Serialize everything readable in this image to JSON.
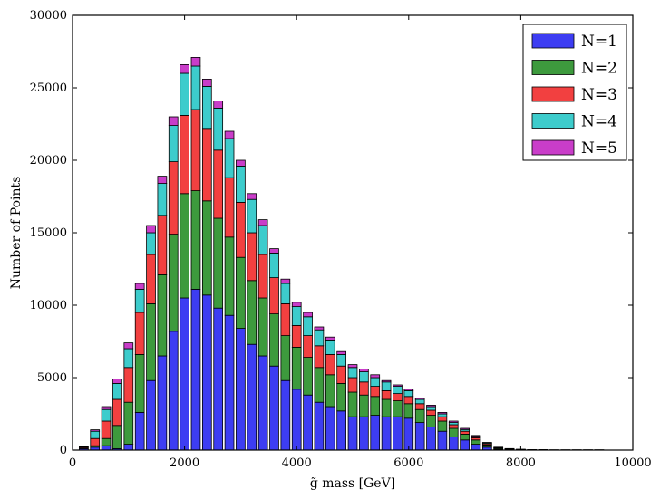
{
  "chart_data": {
    "type": "bar",
    "stacked": true,
    "title": "",
    "xlabel": "g̃ mass [GeV]",
    "ylabel": "Number of Points",
    "xlim": [
      0,
      10000
    ],
    "ylim": [
      0,
      30000
    ],
    "xticks": [
      0,
      2000,
      4000,
      6000,
      8000,
      10000
    ],
    "yticks": [
      0,
      5000,
      10000,
      15000,
      20000,
      25000,
      30000
    ],
    "xtick_labels": [
      "0",
      "2000",
      "4000",
      "6000",
      "8000",
      "10000"
    ],
    "ytick_labels": [
      "0",
      "5000",
      "10000",
      "15000",
      "20000",
      "25000",
      "30000"
    ],
    "bin_width": 200,
    "grid": false,
    "legend_position": "top-right",
    "x": [
      200,
      400,
      600,
      800,
      1000,
      1200,
      1400,
      1600,
      1800,
      2000,
      2200,
      2400,
      2600,
      2800,
      3000,
      3200,
      3400,
      3600,
      3800,
      4000,
      4200,
      4400,
      4600,
      4800,
      5000,
      5200,
      5400,
      5600,
      5800,
      6000,
      6200,
      6400,
      6600,
      6800,
      7000,
      7200,
      7400,
      7600,
      7800,
      8000,
      8200,
      8400,
      8600,
      8800,
      9000,
      9200,
      9400
    ],
    "series": [
      {
        "name": "N=1",
        "color": "#3d3df2",
        "values": [
          100,
          200,
          300,
          100,
          400,
          2600,
          4800,
          6500,
          8200,
          10500,
          11100,
          10700,
          9800,
          9300,
          8400,
          7300,
          6500,
          5800,
          4800,
          4200,
          3800,
          3300,
          3000,
          2700,
          2300,
          2300,
          2400,
          2300,
          2300,
          2200,
          1900,
          1600,
          1300,
          900,
          700,
          400,
          200,
          50,
          30,
          20,
          10,
          10,
          5,
          5,
          5,
          5,
          5
        ]
      },
      {
        "name": "N=2",
        "color": "#3d9a3d",
        "values": [
          50,
          100,
          500,
          1600,
          2900,
          4000,
          5300,
          5600,
          6700,
          7200,
          6800,
          6500,
          6200,
          5400,
          4900,
          4400,
          4000,
          3600,
          3100,
          2900,
          2600,
          2400,
          2200,
          1900,
          1700,
          1500,
          1300,
          1200,
          1100,
          1000,
          900,
          800,
          700,
          600,
          400,
          300,
          150,
          60,
          30,
          10,
          5,
          5,
          3,
          3,
          3,
          3,
          3
        ]
      },
      {
        "name": "N=3",
        "color": "#f24040",
        "values": [
          60,
          500,
          1200,
          1800,
          2400,
          2900,
          3400,
          4100,
          5000,
          5400,
          5600,
          5000,
          4700,
          4100,
          3800,
          3300,
          3000,
          2500,
          2200,
          1500,
          1500,
          1500,
          1400,
          1200,
          1000,
          900,
          700,
          600,
          500,
          500,
          400,
          350,
          300,
          250,
          200,
          150,
          80,
          40,
          20,
          10,
          5,
          5,
          3,
          3,
          3,
          3,
          3
        ]
      },
      {
        "name": "N=4",
        "color": "#3dcccc",
        "values": [
          50,
          500,
          800,
          1100,
          1300,
          1600,
          1500,
          2200,
          2500,
          2900,
          3000,
          2900,
          2900,
          2700,
          2500,
          2300,
          2000,
          1700,
          1400,
          1300,
          1300,
          1100,
          1000,
          800,
          700,
          700,
          600,
          600,
          500,
          400,
          300,
          250,
          200,
          150,
          120,
          100,
          60,
          30,
          15,
          10,
          5,
          5,
          3,
          3,
          3,
          3,
          3
        ]
      },
      {
        "name": "N=5",
        "color": "#c93dc9",
        "values": [
          20,
          100,
          200,
          300,
          400,
          400,
          500,
          500,
          600,
          600,
          600,
          500,
          500,
          500,
          400,
          400,
          400,
          300,
          300,
          300,
          300,
          200,
          200,
          200,
          200,
          200,
          200,
          100,
          100,
          100,
          100,
          100,
          100,
          100,
          80,
          60,
          40,
          20,
          10,
          5,
          3,
          3,
          2,
          2,
          2,
          2,
          2
        ]
      }
    ]
  }
}
